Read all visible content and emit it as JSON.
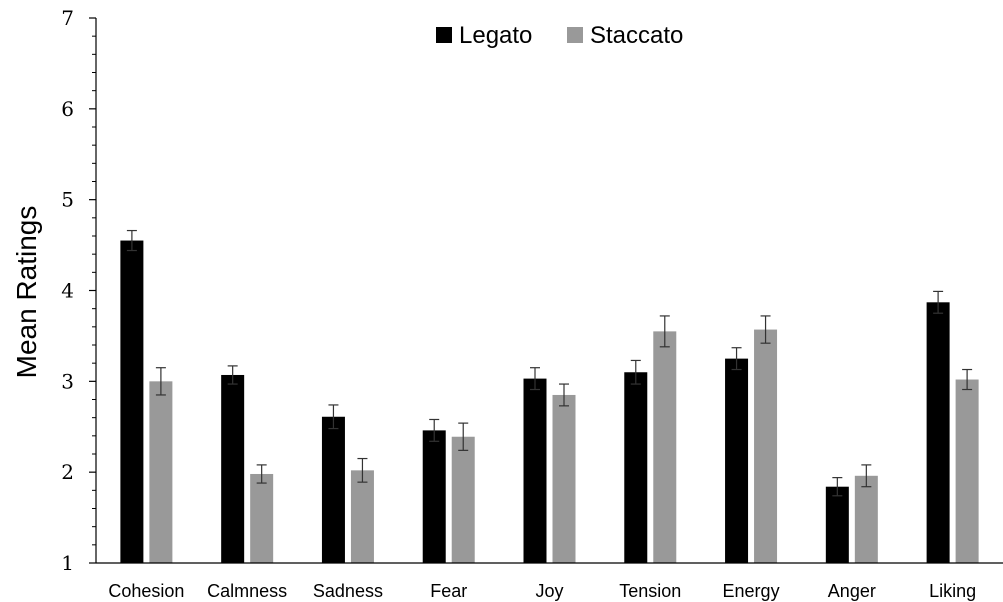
{
  "chart_data": {
    "type": "bar",
    "ylabel": "Mean Ratings",
    "xlabel": "",
    "ylim": [
      1,
      7
    ],
    "yticks": [
      "1",
      "2",
      "3",
      "4",
      "5",
      "6",
      "7"
    ],
    "grid": false,
    "legend_position": "top-center",
    "categories": [
      "Cohesion",
      "Calmness",
      "Sadness",
      "Fear",
      "Joy",
      "Tension",
      "Energy",
      "Anger",
      "Liking"
    ],
    "series": [
      {
        "name": "Legato",
        "color": "#000000",
        "values": [
          4.55,
          3.07,
          2.61,
          2.46,
          3.03,
          3.1,
          3.25,
          1.84,
          3.87
        ],
        "errors": [
          0.11,
          0.1,
          0.13,
          0.12,
          0.12,
          0.13,
          0.12,
          0.1,
          0.12
        ]
      },
      {
        "name": "Staccato",
        "color": "#999999",
        "values": [
          3.0,
          1.98,
          2.02,
          2.39,
          2.85,
          3.55,
          3.57,
          1.96,
          3.02
        ],
        "errors": [
          0.15,
          0.1,
          0.13,
          0.15,
          0.12,
          0.17,
          0.15,
          0.12,
          0.11
        ]
      }
    ]
  }
}
